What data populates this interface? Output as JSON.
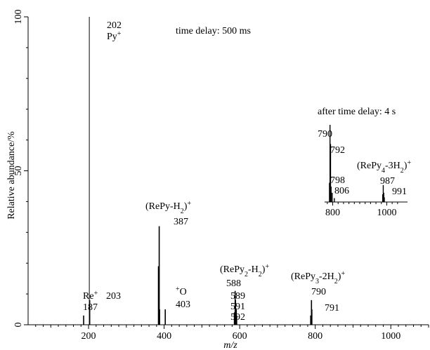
{
  "chart_data": {
    "type": "bar",
    "xlabel": "m/z",
    "ylabel": "Relative abundance/%",
    "xlim": [
      40,
      1100
    ],
    "ylim": [
      0,
      100
    ],
    "xticks": [
      200,
      400,
      600,
      800,
      1000
    ],
    "yticks": [
      0,
      50,
      100
    ],
    "grid": false,
    "annotation": "time delay: 500 ms",
    "series": [
      {
        "peaks": [
          {
            "mz": 187,
            "abundance": 3
          },
          {
            "mz": 202,
            "abundance": 100
          },
          {
            "mz": 203,
            "abundance": 8
          },
          {
            "mz": 385,
            "abundance": 19
          },
          {
            "mz": 387,
            "abundance": 32
          },
          {
            "mz": 388,
            "abundance": 5
          },
          {
            "mz": 403,
            "abundance": 5
          },
          {
            "mz": 586,
            "abundance": 4
          },
          {
            "mz": 588,
            "abundance": 11
          },
          {
            "mz": 589,
            "abundance": 8
          },
          {
            "mz": 591,
            "abundance": 5
          },
          {
            "mz": 592,
            "abundance": 3
          },
          {
            "mz": 788,
            "abundance": 3
          },
          {
            "mz": 790,
            "abundance": 8
          },
          {
            "mz": 791,
            "abundance": 5
          }
        ]
      }
    ],
    "peak_labels": [
      {
        "mz": 187,
        "lines": [
          "Re+",
          "187"
        ]
      },
      {
        "mz": 203,
        "lines": [
          "203"
        ]
      },
      {
        "mz": 202,
        "lines": [
          "202",
          "Py+"
        ]
      },
      {
        "mz": 387,
        "lines": [
          "(RePy-H2)+",
          "387"
        ]
      },
      {
        "mz": 403,
        "lines": [
          "+O",
          "403"
        ]
      },
      {
        "mz": 588,
        "lines": [
          "(RePy2-H2)+",
          "588"
        ]
      },
      {
        "mz": 589,
        "lines": [
          "589",
          "591",
          "592"
        ]
      },
      {
        "mz": 790,
        "lines": [
          "(RePy3-2H2)+",
          "790"
        ]
      },
      {
        "mz": 791,
        "lines": [
          "791"
        ]
      }
    ],
    "inset": {
      "title": "after time delay: 4 s",
      "xlim": [
        770,
        1030
      ],
      "xticks": [
        800,
        1000
      ],
      "peaks": [
        {
          "mz": 788,
          "abundance": 25
        },
        {
          "mz": 790,
          "abundance": 100
        },
        {
          "mz": 792,
          "abundance": 75
        },
        {
          "mz": 794,
          "abundance": 20
        },
        {
          "mz": 798,
          "abundance": 12
        },
        {
          "mz": 806,
          "abundance": 5
        },
        {
          "mz": 985,
          "abundance": 10
        },
        {
          "mz": 987,
          "abundance": 22
        },
        {
          "mz": 989,
          "abundance": 12
        },
        {
          "mz": 991,
          "abundance": 6
        }
      ],
      "labels": {
        "p790": "790",
        "p792": "792",
        "p798": "798",
        "p806": "806",
        "p987": "987",
        "p991": "991",
        "species": "(RePy4-3H2)+"
      }
    }
  }
}
